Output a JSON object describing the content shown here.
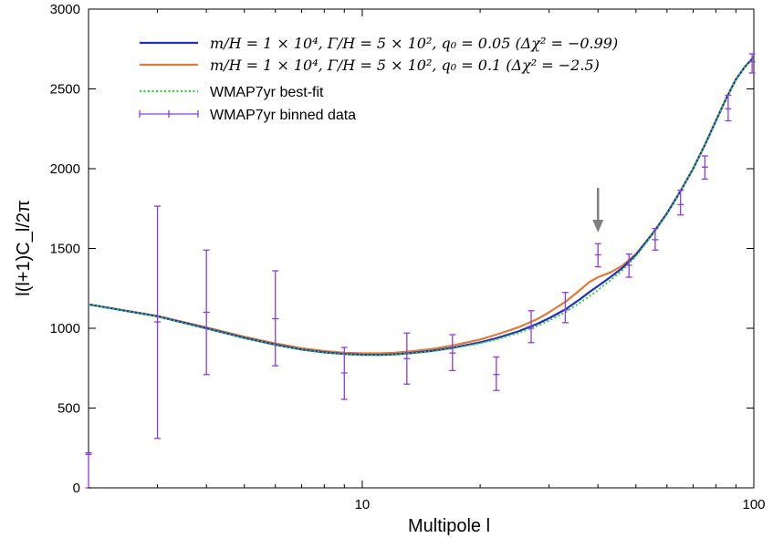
{
  "chart_data": {
    "type": "line",
    "xlabel": "Multipole l",
    "ylabel": "l(l+1)C_l/2π",
    "x_scale": "log",
    "xlim": [
      2,
      100
    ],
    "ylim": [
      0,
      3000
    ],
    "x_ticks": [
      {
        "value": 10,
        "label": "10"
      },
      {
        "value": 100,
        "label": "100"
      }
    ],
    "y_ticks": [
      {
        "value": 0,
        "label": "0"
      },
      {
        "value": 500,
        "label": "500"
      },
      {
        "value": 1000,
        "label": "1000"
      },
      {
        "value": 1500,
        "label": "1500"
      },
      {
        "value": 2000,
        "label": "2000"
      },
      {
        "value": 2500,
        "label": "2500"
      },
      {
        "value": 3000,
        "label": "3000"
      }
    ],
    "grid": false,
    "legend_position": "top",
    "legend": [
      {
        "label": "m/H = 1 × 10⁴,  Γ/H = 5 × 10²,  q₀ = 0.05 (Δχ² = −0.99)",
        "style": "solid",
        "color": "#1f2fbf"
      },
      {
        "label": "m/H = 1 × 10⁴,  Γ/H = 5 × 10²,  q₀ = 0.1 (Δχ² = −2.5)",
        "style": "solid",
        "color": "#e07a3a"
      },
      {
        "label": "WMAP7yr best-fit",
        "style": "dotted",
        "color": "#33cc33"
      },
      {
        "label": "WMAP7yr binned data",
        "style": "errorbar",
        "color": "#8a3ddb"
      }
    ],
    "series": [
      {
        "name": "m/H = 1 × 10⁴,  Γ/H = 5 × 10²,  q₀ = 0.05 (Δχ² = −0.99)",
        "color": "#1f2fbf",
        "x": [
          2,
          3,
          4,
          5,
          6,
          7,
          8,
          9,
          10,
          11,
          12,
          13,
          15,
          17,
          20,
          22,
          25,
          28,
          30,
          33,
          36,
          38,
          40,
          43,
          46,
          50,
          55,
          60,
          65,
          70,
          75,
          80,
          85,
          90,
          95,
          100
        ],
        "y": [
          1150,
          1075,
          1000,
          940,
          897,
          867,
          849,
          839,
          834,
          833,
          836,
          842,
          858,
          878,
          912,
          938,
          980,
          1028,
          1063,
          1118,
          1182,
          1226,
          1265,
          1320,
          1375,
          1460,
          1590,
          1720,
          1860,
          2000,
          2150,
          2300,
          2440,
          2560,
          2640,
          2700
        ]
      },
      {
        "name": "m/H = 1 × 10⁴,  Γ/H = 5 × 10²,  q₀ = 0.1 (Δχ² = −2.5)",
        "color": "#e07a3a",
        "x": [
          2,
          3,
          4,
          5,
          6,
          7,
          8,
          9,
          10,
          11,
          12,
          13,
          15,
          17,
          20,
          22,
          25,
          28,
          30,
          33,
          36,
          38,
          40,
          43,
          46,
          50,
          55,
          60,
          65,
          70,
          75,
          80,
          85,
          90,
          95,
          100
        ],
        "y": [
          1150,
          1077,
          1005,
          947,
          905,
          875,
          857,
          847,
          843,
          843,
          846,
          853,
          870,
          892,
          930,
          960,
          1005,
          1058,
          1100,
          1165,
          1240,
          1290,
          1320,
          1350,
          1390,
          1465,
          1590,
          1720,
          1860,
          2000,
          2150,
          2300,
          2440,
          2560,
          2640,
          2700
        ]
      },
      {
        "name": "WMAP7yr best-fit",
        "color": "#33cc33",
        "x": [
          2,
          3,
          4,
          5,
          6,
          7,
          8,
          9,
          10,
          11,
          12,
          13,
          15,
          17,
          20,
          22,
          25,
          28,
          30,
          33,
          36,
          38,
          40,
          43,
          46,
          50,
          55,
          60,
          65,
          70,
          75,
          80,
          85,
          90,
          95,
          100
        ],
        "y": [
          1150,
          1074,
          998,
          938,
          895,
          865,
          847,
          837,
          832,
          831,
          834,
          840,
          855,
          874,
          906,
          930,
          970,
          1015,
          1048,
          1100,
          1160,
          1200,
          1240,
          1300,
          1360,
          1450,
          1585,
          1715,
          1858,
          2000,
          2150,
          2300,
          2440,
          2560,
          2640,
          2700
        ]
      }
    ],
    "binned_data": {
      "name": "WMAP7yr binned data",
      "color": "#8a3ddb",
      "points": [
        {
          "x": 2,
          "y": 210,
          "lo": 0,
          "hi": 220
        },
        {
          "x": 3,
          "y": 1040,
          "lo": 310,
          "hi": 1765
        },
        {
          "x": 4,
          "y": 1100,
          "lo": 710,
          "hi": 1490
        },
        {
          "x": 6,
          "y": 1060,
          "lo": 765,
          "hi": 1360
        },
        {
          "x": 9,
          "y": 720,
          "lo": 555,
          "hi": 880
        },
        {
          "x": 13,
          "y": 810,
          "lo": 650,
          "hi": 970
        },
        {
          "x": 17,
          "y": 845,
          "lo": 735,
          "hi": 960
        },
        {
          "x": 22,
          "y": 710,
          "lo": 610,
          "hi": 820
        },
        {
          "x": 27,
          "y": 1000,
          "lo": 910,
          "hi": 1110
        },
        {
          "x": 33,
          "y": 1115,
          "lo": 1035,
          "hi": 1225
        },
        {
          "x": 40,
          "y": 1460,
          "lo": 1385,
          "hi": 1530
        },
        {
          "x": 48,
          "y": 1395,
          "lo": 1320,
          "hi": 1465
        },
        {
          "x": 56,
          "y": 1555,
          "lo": 1490,
          "hi": 1625
        },
        {
          "x": 65,
          "y": 1775,
          "lo": 1710,
          "hi": 1865
        },
        {
          "x": 75,
          "y": 2010,
          "lo": 1935,
          "hi": 2080
        },
        {
          "x": 86,
          "y": 2375,
          "lo": 2300,
          "hi": 2460
        },
        {
          "x": 99,
          "y": 2670,
          "lo": 2600,
          "hi": 2720
        }
      ]
    },
    "annotations": [
      {
        "type": "arrow",
        "x": 40,
        "y_from": 1880,
        "y_to": 1600,
        "color": "#808080"
      }
    ]
  }
}
